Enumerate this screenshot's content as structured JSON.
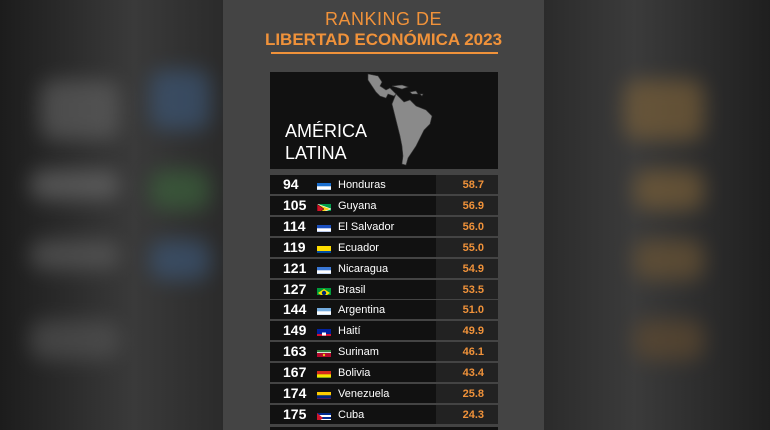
{
  "header": {
    "line1": "RANKING DE",
    "line2": "LIBERTAD ECONÓMICA 2023"
  },
  "map": {
    "region_line1": "AMÉRICA",
    "region_line2": "LATINA"
  },
  "colors": {
    "accent": "#f0923a",
    "panel": "#444444",
    "row": "#111111"
  },
  "rows": [
    {
      "rank": "94",
      "country": "Honduras",
      "score": "58.7",
      "flag": "honduras-flag-icon"
    },
    {
      "rank": "105",
      "country": "Guyana",
      "score": "56.9",
      "flag": "guyana-flag-icon"
    },
    {
      "rank": "114",
      "country": "El Salvador",
      "score": "56.0",
      "flag": "el-salvador-flag-icon"
    },
    {
      "rank": "119",
      "country": "Ecuador",
      "score": "55.0",
      "flag": "ecuador-flag-icon"
    },
    {
      "rank": "121",
      "country": "Nicaragua",
      "score": "54.9",
      "flag": "nicaragua-flag-icon"
    },
    {
      "rank": "127",
      "country": "Brasil",
      "score": "53.5",
      "flag": "brasil-flag-icon"
    },
    {
      "rank": "144",
      "country": "Argentina",
      "score": "51.0",
      "flag": "argentina-flag-icon"
    },
    {
      "rank": "149",
      "country": "Haití",
      "score": "49.9",
      "flag": "haiti-flag-icon"
    },
    {
      "rank": "163",
      "country": "Surinam",
      "score": "46.1",
      "flag": "surinam-flag-icon"
    },
    {
      "rank": "167",
      "country": "Bolivia",
      "score": "43.4",
      "flag": "bolivia-flag-icon"
    },
    {
      "rank": "174",
      "country": "Venezuela",
      "score": "25.8",
      "flag": "venezuela-flag-icon"
    },
    {
      "rank": "175",
      "country": "Cuba",
      "score": "24.3",
      "flag": "cuba-flag-icon"
    }
  ]
}
